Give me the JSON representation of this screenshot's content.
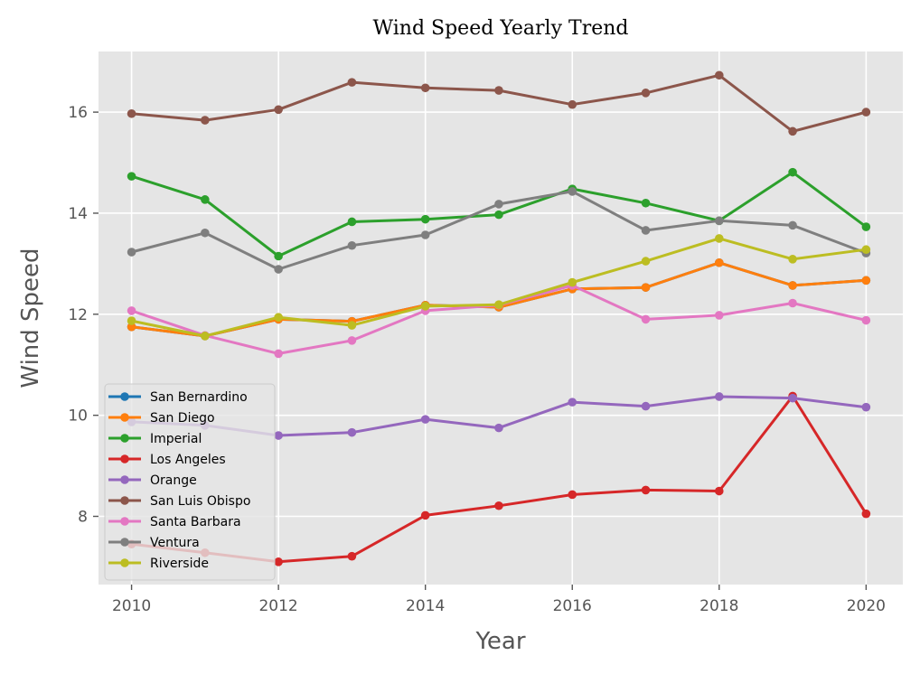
{
  "chart_data": {
    "type": "line",
    "title": "Wind Speed Yearly Trend",
    "xlabel": "Year",
    "ylabel": "Wind Speed",
    "xlim": [
      2009.55,
      2020.5
    ],
    "ylim": [
      6.65,
      17.2
    ],
    "xticks": [
      2010,
      2012,
      2014,
      2016,
      2018,
      2020
    ],
    "yticks": [
      8,
      10,
      12,
      14,
      16
    ],
    "grid": true,
    "legend_position": "lower-left",
    "x": [
      2010,
      2011,
      2012,
      2013,
      2014,
      2015,
      2016,
      2017,
      2018,
      2019,
      2020
    ],
    "series": [
      {
        "name": "San Bernardino",
        "color": "#1f77b4",
        "values": [
          11.75,
          11.57,
          11.9,
          11.86,
          12.18,
          12.14,
          12.5,
          12.53,
          13.02,
          12.57,
          12.67
        ]
      },
      {
        "name": "San Diego",
        "color": "#ff7f0e",
        "values": [
          11.75,
          11.57,
          11.9,
          11.86,
          12.18,
          12.14,
          12.5,
          12.53,
          13.02,
          12.57,
          12.67
        ]
      },
      {
        "name": "Imperial",
        "color": "#2ca02c",
        "values": [
          14.73,
          14.27,
          13.15,
          13.83,
          13.88,
          13.97,
          14.48,
          14.2,
          13.85,
          14.81,
          13.73
        ]
      },
      {
        "name": "Los Angeles",
        "color": "#d62728",
        "values": [
          7.45,
          7.28,
          7.1,
          7.21,
          8.02,
          8.21,
          8.43,
          8.52,
          8.5,
          10.38,
          8.05
        ]
      },
      {
        "name": "Orange",
        "color": "#9467bd",
        "values": [
          9.87,
          9.8,
          9.6,
          9.66,
          9.92,
          9.75,
          10.26,
          10.18,
          10.37,
          10.34,
          10.16
        ]
      },
      {
        "name": "San Luis Obispo",
        "color": "#8c564b",
        "values": [
          15.97,
          15.84,
          16.05,
          16.59,
          16.48,
          16.43,
          16.15,
          16.38,
          16.73,
          15.62,
          16.0
        ]
      },
      {
        "name": "Santa Barbara",
        "color": "#e377c2",
        "values": [
          12.07,
          11.58,
          11.22,
          11.48,
          12.07,
          12.18,
          12.57,
          11.9,
          11.98,
          12.22,
          11.88
        ]
      },
      {
        "name": "Ventura",
        "color": "#7f7f7f",
        "values": [
          13.23,
          13.61,
          12.89,
          13.36,
          13.57,
          14.18,
          14.43,
          13.66,
          13.85,
          13.76,
          13.21
        ]
      },
      {
        "name": "Riverside",
        "color": "#bcbd22",
        "values": [
          11.87,
          11.57,
          11.94,
          11.78,
          12.16,
          12.19,
          12.63,
          13.05,
          13.5,
          13.09,
          13.28
        ]
      }
    ]
  }
}
